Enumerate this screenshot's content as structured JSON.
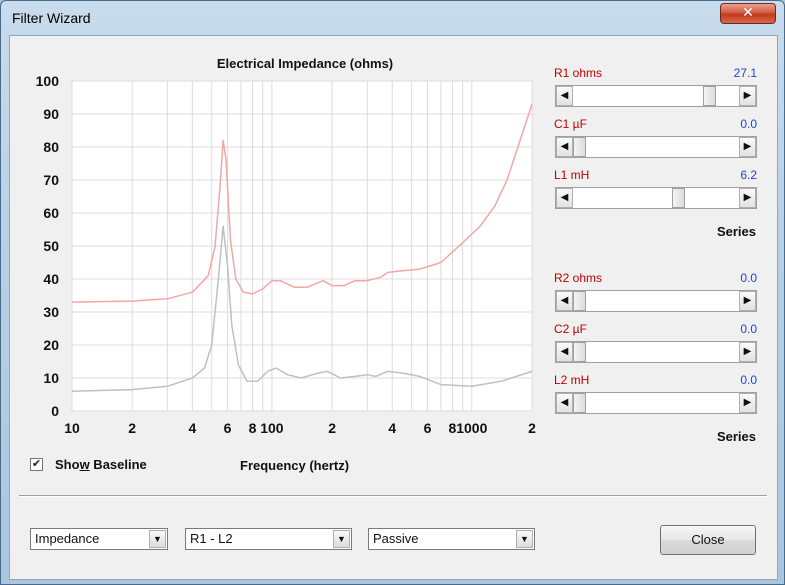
{
  "window": {
    "title": "Filter Wizard",
    "close_glyph": "✕"
  },
  "chart_data": {
    "type": "line",
    "title": "Electrical Impedance (ohms)",
    "xlabel": "Frequency (hertz)",
    "ylabel": "",
    "x_scale": "log",
    "xlim": [
      10,
      2000
    ],
    "ylim": [
      0,
      100
    ],
    "y_ticks": [
      "0",
      "10",
      "20",
      "30",
      "40",
      "50",
      "60",
      "70",
      "80",
      "90",
      "100"
    ],
    "x_tick_labels": [
      {
        "x": 10,
        "label": "10"
      },
      {
        "x": 20,
        "label": "2"
      },
      {
        "x": 40,
        "label": "4"
      },
      {
        "x": 60,
        "label": "6"
      },
      {
        "x": 80,
        "label": "8"
      },
      {
        "x": 100,
        "label": "100"
      },
      {
        "x": 200,
        "label": "2"
      },
      {
        "x": 400,
        "label": "4"
      },
      {
        "x": 600,
        "label": "6"
      },
      {
        "x": 800,
        "label": "8"
      },
      {
        "x": 1000,
        "label": "1000"
      },
      {
        "x": 2000,
        "label": "2"
      }
    ],
    "grid": true,
    "series": [
      {
        "color": "#f4a6a6",
        "points": [
          [
            10,
            33
          ],
          [
            20,
            33.3
          ],
          [
            30,
            34
          ],
          [
            40,
            36
          ],
          [
            48,
            41
          ],
          [
            52,
            50
          ],
          [
            55,
            68
          ],
          [
            57,
            82
          ],
          [
            59,
            76
          ],
          [
            62,
            52
          ],
          [
            66,
            40
          ],
          [
            72,
            36
          ],
          [
            80,
            35.5
          ],
          [
            90,
            37
          ],
          [
            100,
            39.5
          ],
          [
            110,
            39.5
          ],
          [
            130,
            37.5
          ],
          [
            150,
            37.5
          ],
          [
            180,
            39.5
          ],
          [
            200,
            38
          ],
          [
            230,
            38
          ],
          [
            260,
            39.5
          ],
          [
            300,
            39.5
          ],
          [
            350,
            40.5
          ],
          [
            380,
            42
          ],
          [
            450,
            42.5
          ],
          [
            550,
            43
          ],
          [
            700,
            45
          ],
          [
            900,
            51
          ],
          [
            1100,
            56
          ],
          [
            1300,
            62
          ],
          [
            1500,
            70
          ],
          [
            1700,
            80
          ],
          [
            2000,
            93
          ]
        ]
      },
      {
        "color": "#c0c0c0",
        "points": [
          [
            10,
            6
          ],
          [
            20,
            6.5
          ],
          [
            30,
            7.5
          ],
          [
            40,
            10
          ],
          [
            46,
            13
          ],
          [
            50,
            20
          ],
          [
            54,
            40
          ],
          [
            57,
            56
          ],
          [
            60,
            44
          ],
          [
            63,
            26
          ],
          [
            68,
            14
          ],
          [
            75,
            9
          ],
          [
            85,
            9
          ],
          [
            95,
            12
          ],
          [
            105,
            13
          ],
          [
            120,
            11
          ],
          [
            140,
            10
          ],
          [
            170,
            11.5
          ],
          [
            190,
            12
          ],
          [
            220,
            10
          ],
          [
            260,
            10.5
          ],
          [
            300,
            11
          ],
          [
            330,
            10.5
          ],
          [
            380,
            12
          ],
          [
            450,
            11.5
          ],
          [
            550,
            10.5
          ],
          [
            700,
            8
          ],
          [
            1000,
            7.5
          ],
          [
            1400,
            9
          ],
          [
            2000,
            12
          ]
        ]
      }
    ]
  },
  "show_baseline": {
    "label_pre": "Sho",
    "label_ul": "w",
    "label_post": " Baseline",
    "checked": "✔"
  },
  "sliders": [
    {
      "name": "R1",
      "label": "R1  ohms",
      "value": "27.1",
      "level": 0.85
    },
    {
      "name": "C1",
      "label": "C1  µF",
      "value": "0.0",
      "level": 0.0
    },
    {
      "name": "L1",
      "label": "L1  mH",
      "value": "6.2",
      "level": 0.65
    },
    {
      "name": "R2",
      "label": "R2  ohms",
      "value": "0.0",
      "level": 0.0
    },
    {
      "name": "C2",
      "label": "C2  µF",
      "value": "0.0",
      "level": 0.0
    },
    {
      "name": "L2",
      "label": "L2  mH",
      "value": "0.0",
      "level": 0.0
    }
  ],
  "series_label_1": "Series",
  "series_label_2": "Series",
  "dropdowns": [
    {
      "value": "Impedance"
    },
    {
      "value": "R1 - L2"
    },
    {
      "value": "Passive"
    }
  ],
  "arrow_left": "◀",
  "arrow_right": "▶",
  "arrow_down": "▼",
  "close_button": "Close",
  "colors": {
    "label_red": "#c00000",
    "value_blue": "#2244cc"
  }
}
